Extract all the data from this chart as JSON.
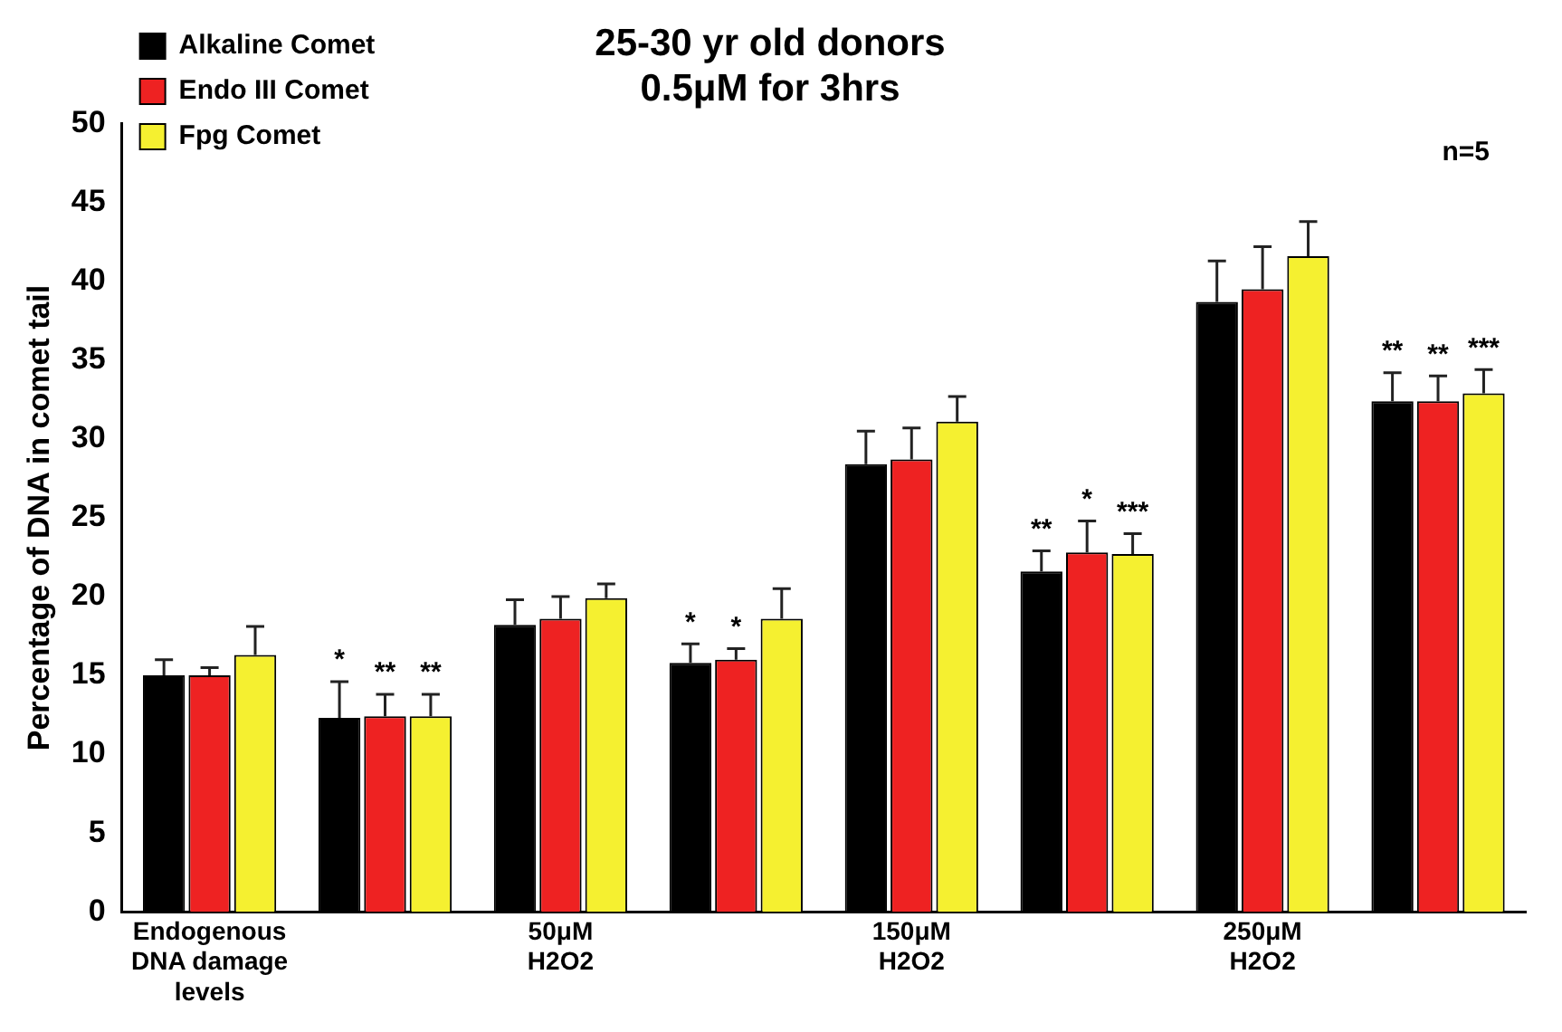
{
  "chart_data": {
    "type": "bar",
    "title": "25-30 yr old donors\n0.5μM for 3hrs",
    "ylabel": "Percentage of DNA in comet tail",
    "categories": [
      "Endogenous\nDNA damage\nlevels",
      null,
      "50μM\nH2O2",
      null,
      "150μM\nH2O2",
      null,
      "250μM\nH2O2",
      null
    ],
    "series": [
      {
        "name": "Alkaline Comet",
        "color": "#000000",
        "values": [
          15.0,
          12.3,
          18.2,
          15.8,
          28.4,
          21.6,
          38.7,
          32.4
        ],
        "errors": [
          1.0,
          2.3,
          1.6,
          1.2,
          2.1,
          1.3,
          2.6,
          1.8
        ],
        "value_labels": [
          null,
          "*",
          null,
          "*",
          null,
          "**",
          null,
          "**"
        ]
      },
      {
        "name": "Endo III Comet",
        "color": "#ee2222",
        "values": [
          15.0,
          12.4,
          18.6,
          16.0,
          28.7,
          22.8,
          39.5,
          32.4
        ],
        "errors": [
          0.5,
          1.4,
          1.4,
          0.7,
          2.0,
          2.0,
          2.7,
          1.6
        ],
        "value_labels": [
          null,
          "**",
          null,
          "*",
          null,
          "*",
          null,
          "**"
        ]
      },
      {
        "name": "Fpg Comet",
        "color": "#f5f030",
        "values": [
          16.3,
          12.4,
          19.9,
          18.6,
          31.1,
          22.7,
          41.6,
          32.9
        ],
        "errors": [
          1.8,
          1.4,
          0.9,
          1.9,
          1.6,
          1.3,
          2.2,
          1.5
        ],
        "value_labels": [
          null,
          "**",
          null,
          null,
          null,
          "***",
          null,
          "***"
        ]
      }
    ],
    "ylim": [
      0,
      50
    ],
    "yticks": [
      0,
      5,
      10,
      15,
      20,
      25,
      30,
      35,
      40,
      45,
      50
    ],
    "grid": false,
    "legend": "top left",
    "annotations": [
      "n=5"
    ]
  }
}
